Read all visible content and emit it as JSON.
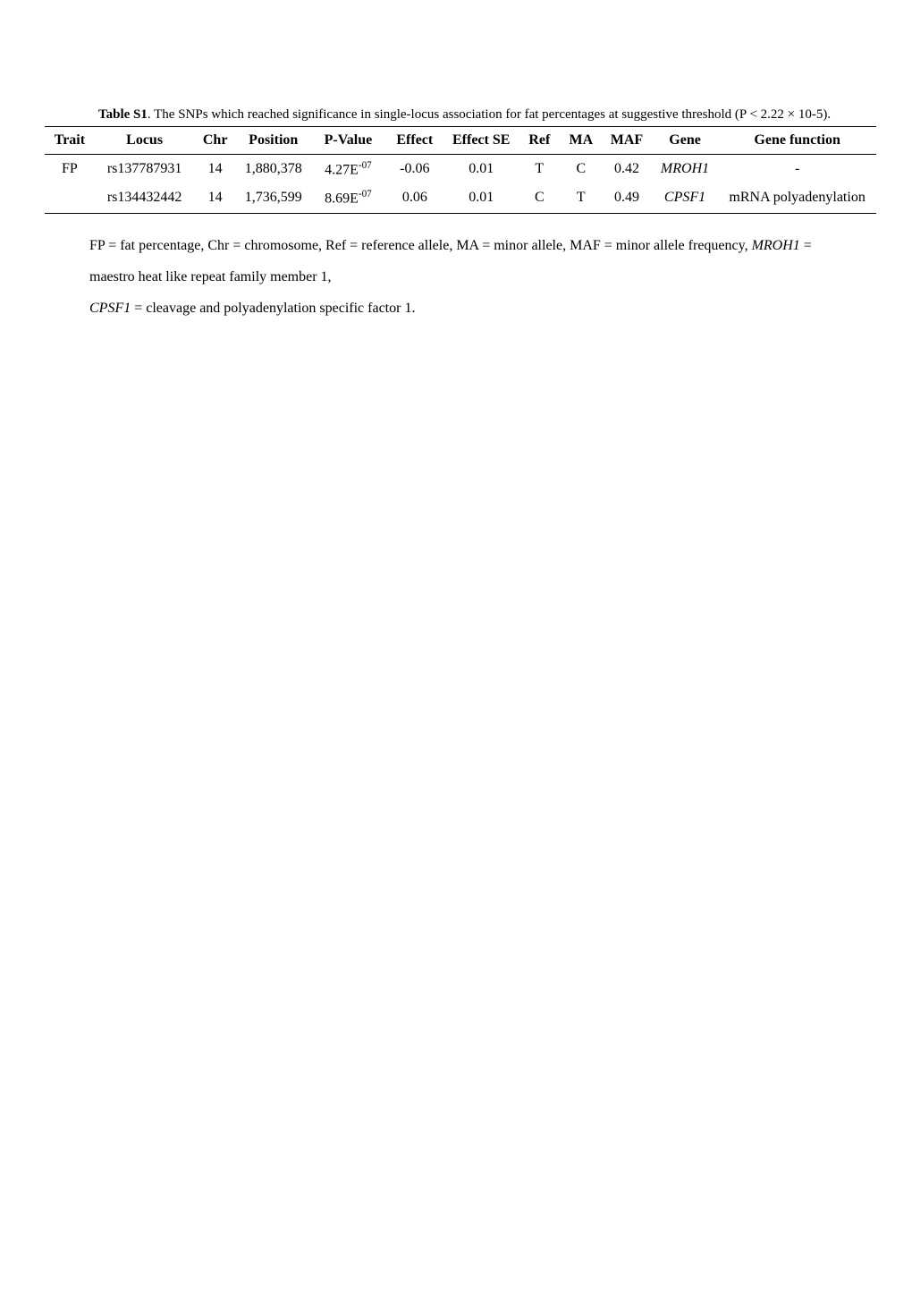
{
  "caption": {
    "bold_prefix": "Table S1",
    "text": ". The SNPs which reached significance in single-locus association for fat percentages at suggestive threshold (P < 2.22 × 10-5)."
  },
  "table": {
    "columns": [
      "Trait",
      "Locus",
      "Chr",
      "Position",
      "P-Value",
      "Effect",
      "Effect SE",
      "Ref",
      "MA",
      "MAF",
      "Gene",
      "Gene function"
    ],
    "rows": [
      {
        "trait": "FP",
        "locus": "rs137787931",
        "chr": "14",
        "position": "1,880,378",
        "pvalue_base": "4.27E",
        "pvalue_exp": "-07",
        "effect": "-0.06",
        "effect_se": "0.01",
        "ref": "T",
        "ma": "C",
        "maf": "0.42",
        "gene": "MROH1",
        "gene_func": "-"
      },
      {
        "trait": "",
        "locus": "rs134432442",
        "chr": "14",
        "position": "1,736,599",
        "pvalue_base": "8.69E",
        "pvalue_exp": "-07",
        "effect": "0.06",
        "effect_se": "0.01",
        "ref": "C",
        "ma": "T",
        "maf": "0.49",
        "gene": "CPSF1",
        "gene_func": "mRNA polyadenylation"
      }
    ],
    "col_widths_pct": [
      6,
      12,
      5,
      9,
      9,
      7,
      9,
      5,
      5,
      6,
      8,
      19
    ]
  },
  "footnote": {
    "p1": "FP = fat percentage, Chr = chromosome, Ref  = reference allele, MA = minor allele, MAF = minor allele frequency, ",
    "g1": "MROH1",
    "p2": " = maestro heat like repeat family member 1,",
    "g2": "CPSF1",
    "p3": " = cleavage and polyadenylation specific factor 1."
  },
  "colors": {
    "bg": "#ffffff",
    "text": "#000000",
    "rule": "#000000"
  }
}
